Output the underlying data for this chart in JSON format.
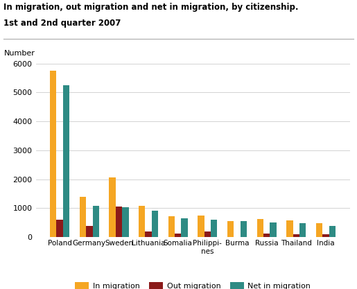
{
  "title_line1": "In migration, out migration and net in migration, by citizenship.",
  "title_line2": "1st and 2nd quarter 2007",
  "ylabel": "Number",
  "categories": [
    "Poland",
    "Germany",
    "Sweden",
    "Lithuania",
    "Somalia",
    "Philippi-\nnes",
    "Burma",
    "Russia",
    "Thailand",
    "India"
  ],
  "in_migration": [
    5750,
    1400,
    2050,
    1075,
    710,
    730,
    560,
    615,
    570,
    490
  ],
  "out_migration": [
    600,
    380,
    1060,
    185,
    110,
    195,
    0,
    115,
    105,
    105
  ],
  "net_migration": [
    5250,
    1080,
    1030,
    920,
    640,
    590,
    555,
    510,
    490,
    390
  ],
  "color_in": "#F5A623",
  "color_out": "#8B1A1A",
  "color_net": "#2E8B84",
  "ylim": [
    0,
    6000
  ],
  "yticks": [
    0,
    1000,
    2000,
    3000,
    4000,
    5000,
    6000
  ],
  "legend_labels": [
    "In migration",
    "Out migration",
    "Net in migration"
  ],
  "bar_width": 0.22,
  "figsize": [
    5.15,
    4.17
  ],
  "dpi": 100
}
